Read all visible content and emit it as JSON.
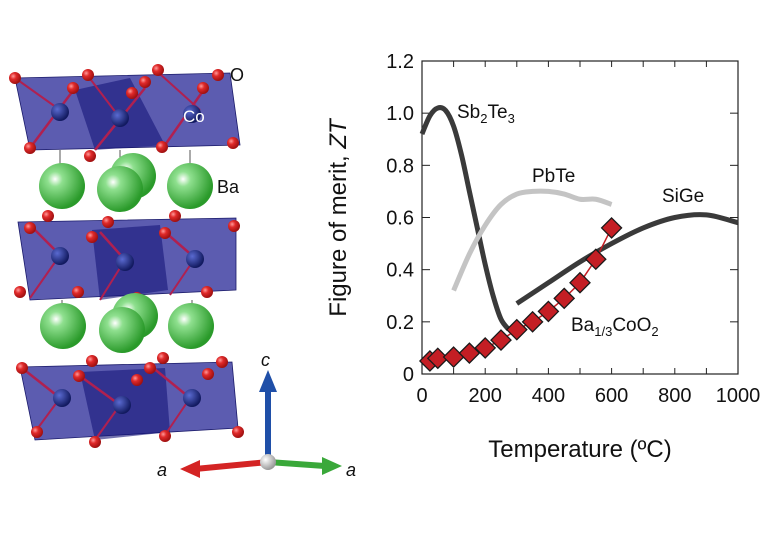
{
  "structure": {
    "atom_labels": {
      "oxygen": "O",
      "cobalt": "Co",
      "barium": "Ba"
    },
    "axes_labels": {
      "c": "c",
      "a_left": "a",
      "a_right": "a"
    },
    "colors": {
      "polyhedra": "#2e2e9a",
      "oxygen": "#d42020",
      "cobalt": "#1a2a7a",
      "barium": "#3cb83c",
      "axis_c": "#1f4fa8",
      "axis_a_left": "#d42424",
      "axis_a_right": "#3aa83a",
      "origin": "#d8d8d8"
    }
  },
  "chart_data": {
    "type": "line",
    "title": "",
    "xlabel": "Temperature (ºC)",
    "ylabel_main": "Figure of merit, ",
    "ylabel_italic": "ZT",
    "xlim": [
      0,
      1000
    ],
    "ylim": [
      0,
      1.2
    ],
    "xticks": [
      0,
      200,
      400,
      600,
      800,
      1000
    ],
    "xtick_labels": [
      "0",
      "200",
      "400",
      "600",
      "800",
      "1000"
    ],
    "yticks": [
      0,
      0.2,
      0.4,
      0.6,
      0.8,
      1.0,
      1.2
    ],
    "ytick_labels": [
      "0",
      "0.2",
      "0.4",
      "0.6",
      "0.8",
      "1.0",
      "1.2"
    ],
    "grid": false,
    "legend": "inline labels",
    "series": [
      {
        "name": "Sb2Te3",
        "label_main": "Sb",
        "label_sub1": "2",
        "label_mid": "Te",
        "label_sub2": "3",
        "color": "#3a3a3a",
        "style": "line",
        "x": [
          0,
          25,
          50,
          75,
          100,
          125,
          150,
          175,
          200,
          225,
          250,
          275
        ],
        "y": [
          0.92,
          0.99,
          1.02,
          1.01,
          0.95,
          0.84,
          0.7,
          0.56,
          0.42,
          0.3,
          0.21,
          0.17
        ]
      },
      {
        "name": "PbTe",
        "label": "PbTe",
        "color": "#c4c4c4",
        "style": "line",
        "x": [
          100,
          150,
          200,
          250,
          300,
          350,
          400,
          450,
          500,
          550,
          600
        ],
        "y": [
          0.32,
          0.46,
          0.57,
          0.65,
          0.69,
          0.7,
          0.7,
          0.69,
          0.67,
          0.67,
          0.65
        ]
      },
      {
        "name": "SiGe",
        "label": "SiGe",
        "color": "#3a3a3a",
        "style": "line",
        "x": [
          300,
          400,
          500,
          600,
          700,
          800,
          900,
          1000
        ],
        "y": [
          0.27,
          0.35,
          0.43,
          0.5,
          0.56,
          0.6,
          0.61,
          0.58
        ]
      },
      {
        "name": "Ba1/3CoO2",
        "label_main": "Ba",
        "label_sub": "1/3",
        "label_mid": "CoO",
        "label_sub2": "2",
        "color": "#c41e24",
        "edge_color": "#1a1a1a",
        "style": "diamond-markers-with-line",
        "x": [
          25,
          50,
          100,
          150,
          200,
          250,
          300,
          350,
          400,
          450,
          500,
          550,
          600
        ],
        "y": [
          0.05,
          0.06,
          0.065,
          0.08,
          0.1,
          0.13,
          0.17,
          0.2,
          0.24,
          0.29,
          0.35,
          0.44,
          0.56
        ]
      }
    ]
  }
}
